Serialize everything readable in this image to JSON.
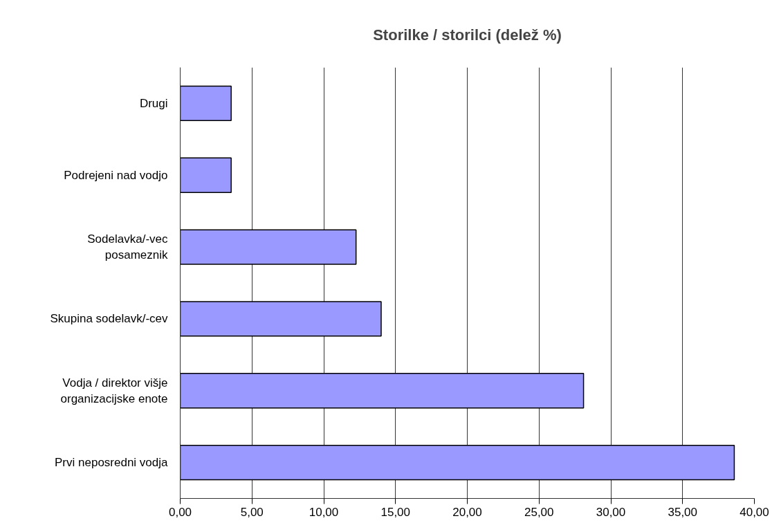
{
  "chart_data": {
    "type": "bar",
    "orientation": "horizontal",
    "title": "Storilke / storilci (delež %)",
    "categories": [
      "Drugi",
      "Podrejeni nad vodjo",
      "Sodelavka/-vec\nposameznik",
      "Skupina sodelavk/-cev",
      "Vodja / direktor višje\norganizacijske enote",
      "Prvi neposredni vodja"
    ],
    "values": [
      3.55,
      3.55,
      12.25,
      14.0,
      28.1,
      38.6
    ],
    "color": "#9999ff",
    "xlim": [
      0,
      40
    ],
    "xticks": [
      {
        "value": 0,
        "label": "0,00"
      },
      {
        "value": 5,
        "label": "5,00"
      },
      {
        "value": 10,
        "label": "10,00"
      },
      {
        "value": 15,
        "label": "15,00"
      },
      {
        "value": 20,
        "label": "20,00"
      },
      {
        "value": 25,
        "label": "25,00"
      },
      {
        "value": 30,
        "label": "30,00"
      },
      {
        "value": 35,
        "label": "35,00"
      },
      {
        "value": 40,
        "label": "40,00"
      }
    ],
    "grid": "x"
  }
}
